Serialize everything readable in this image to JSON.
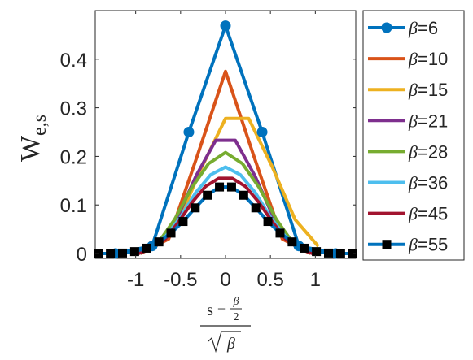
{
  "chart_data": {
    "type": "line",
    "xlabel": {
      "numerator_s": "s",
      "numerator_frac_num": "β",
      "numerator_frac_den": "2",
      "denominator": "β"
    },
    "ylabel": {
      "main": "W",
      "subscript": "e,s"
    },
    "xlim": [
      -1.45,
      1.45
    ],
    "ylim": [
      -0.01,
      0.5
    ],
    "xticks": [
      -1,
      -0.5,
      0,
      0.5,
      1
    ],
    "xtick_labels": [
      "-1",
      "-0.5",
      "0",
      "0.5",
      "1"
    ],
    "yticks": [
      0,
      0.1,
      0.2,
      0.3,
      0.4
    ],
    "ytick_labels": [
      "0",
      "0.1",
      "0.2",
      "0.3",
      "0.4"
    ],
    "grid": false,
    "legend_position": "outside-right",
    "series": [
      {
        "name": "β=6",
        "beta_symbol": "β",
        "beta_value": "=6",
        "color": "#0072BD",
        "marker": "circle",
        "x": [
          -1.2247,
          -0.8165,
          -0.4082,
          0,
          0.4082,
          0.8165,
          1.2247
        ],
        "y": [
          0,
          0.0156,
          0.25,
          0.4688,
          0.25,
          0.0156,
          0
        ]
      },
      {
        "name": "β=10",
        "beta_symbol": "β",
        "beta_value": "=10",
        "color": "#D95319",
        "marker": "none",
        "x": [
          -0.9487,
          -0.6325,
          -0.3162,
          0,
          0.3162,
          0.6325,
          0.9487
        ],
        "y": [
          0,
          0.03,
          0.2,
          0.375,
          0.2,
          0.03,
          0
        ]
      },
      {
        "name": "β=15",
        "beta_symbol": "β",
        "beta_value": "=15",
        "color": "#EDB120",
        "marker": "none",
        "x": [
          -1.0328,
          -0.7746,
          -0.5164,
          -0.2582,
          0,
          0.2582,
          0.5164,
          0.7746,
          1.0328
        ],
        "y": [
          0,
          0.015,
          0.07,
          0.18,
          0.278,
          0.278,
          0.18,
          0.07,
          0.015
        ]
      },
      {
        "name": "β=21",
        "beta_symbol": "β",
        "beta_value": "=21",
        "color": "#7E2F8E",
        "marker": "none",
        "x": [
          -0.982,
          -0.7638,
          -0.5455,
          -0.3273,
          -0.1091,
          0.1091,
          0.3273,
          0.5455,
          0.7638,
          0.982
        ],
        "y": [
          0,
          0.02,
          0.07,
          0.16,
          0.233,
          0.233,
          0.16,
          0.07,
          0.02,
          0
        ]
      },
      {
        "name": "β=28",
        "beta_symbol": "β",
        "beta_value": "=28",
        "color": "#77AC30",
        "marker": "none",
        "x": [
          -0.9449,
          -0.7559,
          -0.5669,
          -0.378,
          -0.189,
          0,
          0.189,
          0.378,
          0.5669,
          0.7559,
          0.9449
        ],
        "y": [
          0,
          0.02,
          0.07,
          0.135,
          0.185,
          0.208,
          0.185,
          0.135,
          0.07,
          0.02,
          0
        ]
      },
      {
        "name": "β=36",
        "beta_symbol": "β",
        "beta_value": "=36",
        "color": "#4DBEEE",
        "marker": "none",
        "x": [
          -1.0,
          -0.8333,
          -0.6667,
          -0.5,
          -0.3333,
          -0.1667,
          0,
          0.1667,
          0.3333,
          0.5,
          0.6667,
          0.8333,
          1.0
        ],
        "y": [
          0,
          0.01,
          0.035,
          0.075,
          0.125,
          0.162,
          0.178,
          0.162,
          0.125,
          0.075,
          0.035,
          0.01,
          0
        ]
      },
      {
        "name": "β=45",
        "beta_symbol": "β",
        "beta_value": "=45",
        "color": "#A2142F",
        "marker": "none",
        "x": [
          -0.9689,
          -0.8199,
          -0.6708,
          -0.5217,
          -0.3727,
          -0.2236,
          -0.0745,
          0.0745,
          0.2236,
          0.3727,
          0.5217,
          0.6708,
          0.8199,
          0.9689
        ],
        "y": [
          0,
          0.01,
          0.03,
          0.065,
          0.105,
          0.138,
          0.155,
          0.155,
          0.138,
          0.105,
          0.065,
          0.03,
          0.01,
          0
        ]
      },
      {
        "name": "β=55",
        "beta_symbol": "β",
        "beta_value": "=55",
        "color": "#0072BD",
        "marker": "square",
        "x": [
          -1.416,
          -1.2812,
          -1.1463,
          -1.0115,
          -0.8767,
          -0.7418,
          -0.607,
          -0.4721,
          -0.3373,
          -0.2023,
          -0.0674,
          0.0674,
          0.2023,
          0.3373,
          0.4721,
          0.607,
          0.7418,
          0.8767,
          1.0115,
          1.1463,
          1.2812,
          1.416
        ],
        "y": [
          0,
          0,
          0.001,
          0.004,
          0.011,
          0.024,
          0.042,
          0.066,
          0.094,
          0.12,
          0.137,
          0.137,
          0.12,
          0.094,
          0.066,
          0.042,
          0.024,
          0.011,
          0.004,
          0.001,
          0,
          0
        ]
      }
    ]
  }
}
